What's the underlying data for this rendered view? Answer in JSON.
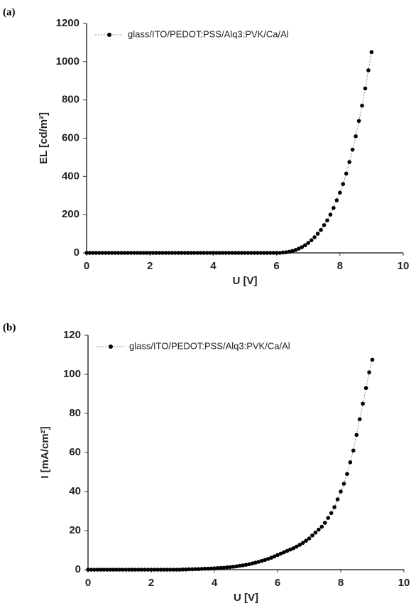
{
  "chart_data": [
    {
      "type": "line",
      "panel_label": "(a)",
      "x_label": "U [V]",
      "y_label": "EL [cd/m²]",
      "x": [
        0,
        0.1,
        0.2,
        0.3,
        0.4,
        0.5,
        0.6,
        0.7,
        0.8,
        0.9,
        1,
        1.1,
        1.2,
        1.3,
        1.4,
        1.5,
        1.6,
        1.7,
        1.8,
        1.9,
        2,
        2.1,
        2.2,
        2.3,
        2.4,
        2.5,
        2.6,
        2.7,
        2.8,
        2.9,
        3,
        3.1,
        3.2,
        3.3,
        3.4,
        3.5,
        3.6,
        3.7,
        3.8,
        3.9,
        4,
        4.1,
        4.2,
        4.3,
        4.4,
        4.5,
        4.6,
        4.7,
        4.8,
        4.9,
        5,
        5.1,
        5.2,
        5.3,
        5.4,
        5.5,
        5.6,
        5.7,
        5.8,
        5.9,
        6,
        6.1,
        6.2,
        6.3,
        6.4,
        6.5,
        6.6,
        6.7,
        6.8,
        6.9,
        7,
        7.1,
        7.2,
        7.3,
        7.4,
        7.5,
        7.6,
        7.7,
        7.8,
        7.9,
        8,
        8.1,
        8.2,
        8.3,
        8.4,
        8.5,
        8.6,
        8.7,
        8.8,
        8.9,
        9
      ],
      "series": [
        {
          "name": "glass/ITO/PEDOT:PSS/Alq3:PVK/Ca/Al",
          "color": "#000000",
          "values": [
            0,
            0,
            0,
            0,
            0,
            0,
            0,
            0,
            0,
            0,
            0,
            0,
            0,
            0,
            0,
            0,
            0,
            0,
            0,
            0,
            0,
            0,
            0,
            0,
            0,
            0,
            0,
            0,
            0,
            0,
            0,
            0,
            0,
            0,
            0,
            0,
            0,
            0,
            0,
            0,
            0,
            0,
            0,
            0,
            0,
            0,
            0,
            0,
            0,
            0,
            0,
            0,
            0,
            0,
            0,
            0,
            0,
            0,
            0,
            0,
            0,
            0,
            2,
            3,
            6,
            10,
            15,
            22,
            30,
            40,
            52,
            66,
            82,
            100,
            120,
            145,
            170,
            200,
            235,
            275,
            315,
            360,
            415,
            475,
            540,
            610,
            690,
            770,
            860,
            955,
            1050
          ]
        }
      ],
      "xlim": [
        0,
        10
      ],
      "xticks": [
        0,
        2,
        4,
        6,
        8,
        10
      ],
      "ylim": [
        0,
        1200
      ],
      "yticks": [
        0,
        200,
        400,
        600,
        800,
        1000,
        1200
      ],
      "legend": "upper left"
    },
    {
      "type": "line",
      "panel_label": "(b)",
      "x_label": "U [V]",
      "y_label": "I [mA/cm²]",
      "x": [
        0,
        0.1,
        0.2,
        0.3,
        0.4,
        0.5,
        0.6,
        0.7,
        0.8,
        0.9,
        1,
        1.1,
        1.2,
        1.3,
        1.4,
        1.5,
        1.6,
        1.7,
        1.8,
        1.9,
        2,
        2.1,
        2.2,
        2.3,
        2.4,
        2.5,
        2.6,
        2.7,
        2.8,
        2.9,
        3,
        3.1,
        3.2,
        3.3,
        3.4,
        3.5,
        3.6,
        3.7,
        3.8,
        3.9,
        4,
        4.1,
        4.2,
        4.3,
        4.4,
        4.5,
        4.6,
        4.7,
        4.8,
        4.9,
        5,
        5.1,
        5.2,
        5.3,
        5.4,
        5.5,
        5.6,
        5.7,
        5.8,
        5.9,
        6,
        6.1,
        6.2,
        6.3,
        6.4,
        6.5,
        6.6,
        6.7,
        6.8,
        6.9,
        7,
        7.1,
        7.2,
        7.3,
        7.4,
        7.5,
        7.6,
        7.7,
        7.8,
        7.9,
        8,
        8.1,
        8.2,
        8.3,
        8.4,
        8.5,
        8.6,
        8.7,
        8.8,
        8.9,
        9
      ],
      "series": [
        {
          "name": "glass/ITO/PEDOT:PSS/Alq3:PVK/Ca/Al",
          "color": "#000000",
          "values": [
            0,
            0,
            0,
            0,
            0,
            0,
            0,
            0,
            0,
            0,
            0,
            0,
            0,
            0,
            0,
            0,
            0,
            0,
            0,
            0,
            0,
            0,
            0,
            0,
            0,
            0,
            0,
            0,
            0,
            0,
            0.1,
            0.1,
            0.2,
            0.2,
            0.3,
            0.3,
            0.4,
            0.5,
            0.5,
            0.6,
            0.7,
            0.8,
            0.9,
            1.0,
            1.2,
            1.3,
            1.5,
            1.7,
            2.0,
            2.2,
            2.5,
            2.8,
            3.2,
            3.6,
            4.0,
            4.5,
            5.0,
            5.5,
            6.1,
            6.8,
            7.5,
            8.2,
            8.9,
            9.6,
            10.3,
            11.0,
            11.8,
            12.7,
            13.7,
            14.8,
            16.0,
            17.5,
            19.0,
            20.5,
            22,
            24,
            26.5,
            29,
            32,
            36,
            40,
            44,
            49,
            55,
            61,
            69,
            77,
            85,
            93,
            101,
            107.5
          ]
        }
      ],
      "xlim": [
        0,
        10
      ],
      "xticks": [
        0,
        2,
        4,
        6,
        8,
        10
      ],
      "ylim": [
        0,
        120
      ],
      "yticks": [
        0,
        20,
        40,
        60,
        80,
        100,
        120
      ],
      "legend": "upper left"
    }
  ]
}
